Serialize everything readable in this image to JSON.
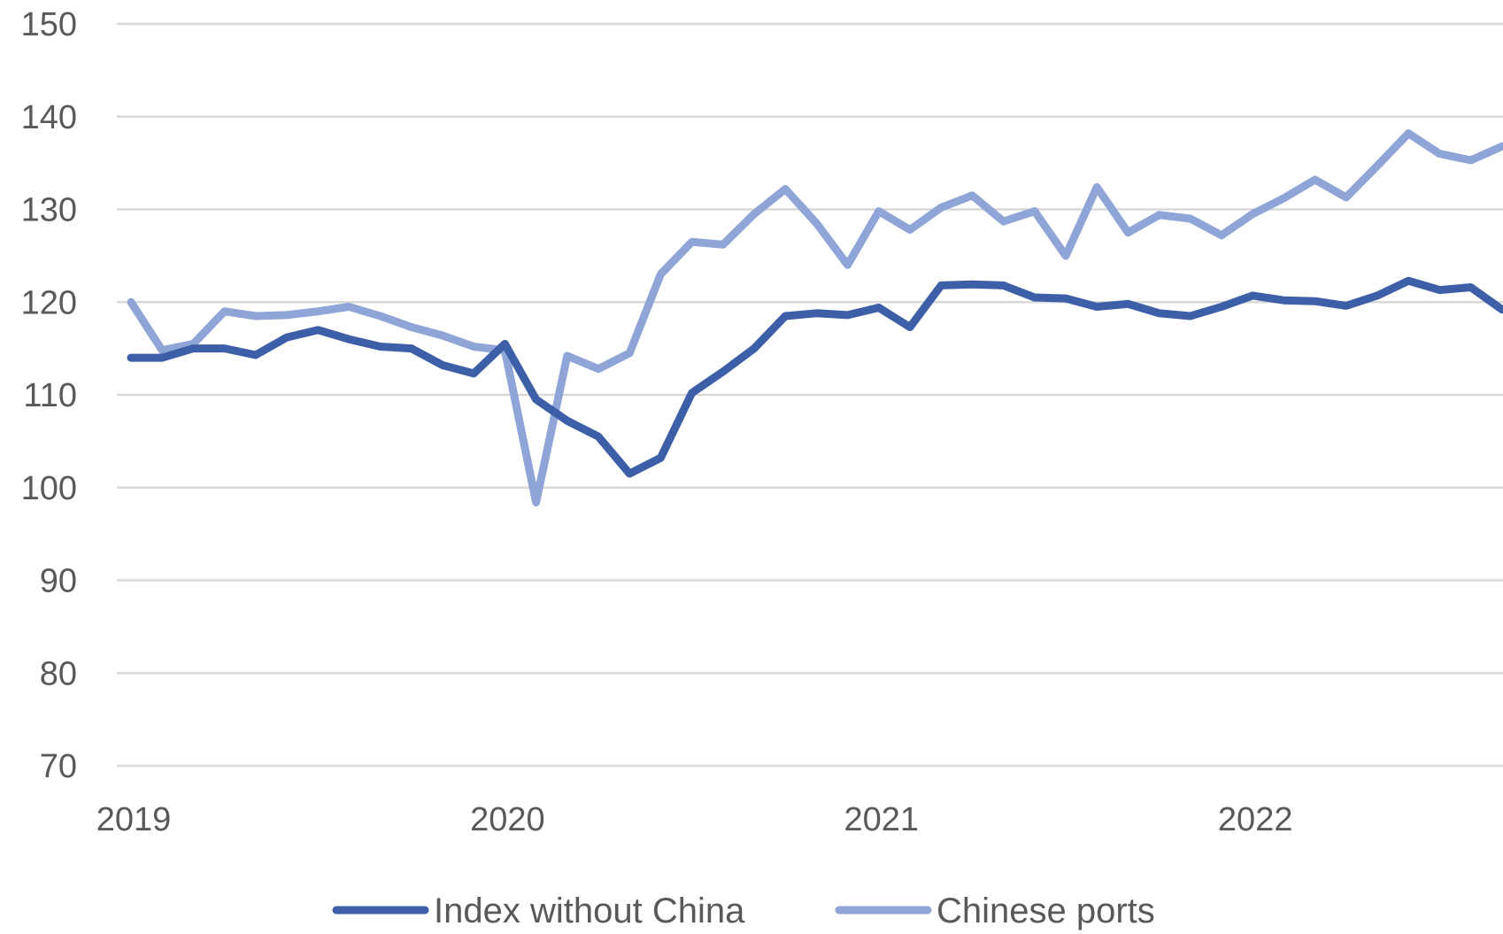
{
  "chart_data": {
    "type": "line",
    "title": "",
    "xlabel": "",
    "ylabel": "",
    "ylim": [
      70,
      150
    ],
    "yticks": [
      70,
      80,
      90,
      100,
      110,
      120,
      130,
      140,
      150
    ],
    "xticks": [
      {
        "label": "2019",
        "value": "2019-01"
      },
      {
        "label": "2020",
        "value": "2020-01"
      },
      {
        "label": "2021",
        "value": "2021-01"
      },
      {
        "label": "2022",
        "value": "2022-01"
      }
    ],
    "grid": true,
    "legend_position": "bottom",
    "x": [
      "2019-01",
      "2019-02",
      "2019-03",
      "2019-04",
      "2019-05",
      "2019-06",
      "2019-07",
      "2019-08",
      "2019-09",
      "2019-10",
      "2019-11",
      "2019-12",
      "2020-01",
      "2020-02",
      "2020-03",
      "2020-04",
      "2020-05",
      "2020-06",
      "2020-07",
      "2020-08",
      "2020-09",
      "2020-10",
      "2020-11",
      "2020-12",
      "2021-01",
      "2021-02",
      "2021-03",
      "2021-04",
      "2021-05",
      "2021-06",
      "2021-07",
      "2021-08",
      "2021-09",
      "2021-10",
      "2021-11",
      "2021-12",
      "2022-01",
      "2022-02",
      "2022-03",
      "2022-04",
      "2022-05",
      "2022-06",
      "2022-07",
      "2022-08",
      "2022-09"
    ],
    "series": [
      {
        "name": "Index without China",
        "color": "#3d5fa8",
        "values": [
          114,
          114,
          115,
          115,
          114.3,
          116.2,
          117,
          116,
          115.2,
          115,
          113.2,
          112.3,
          115.5,
          109.5,
          107.2,
          105.5,
          101.5,
          103.2,
          110.2,
          112.5,
          115,
          118.5,
          118.8,
          118.6,
          119.4,
          117.3,
          121.8,
          121.9,
          121.8,
          120.5,
          120.4,
          119.5,
          119.8,
          118.8,
          118.5,
          119.5,
          120.7,
          120.2,
          120.1,
          119.6,
          120.7,
          122.3,
          121.3,
          121.6,
          119.2
        ]
      },
      {
        "name": "Chinese ports",
        "color": "#8fa5d8",
        "values": [
          120,
          114.8,
          115.5,
          119,
          118.5,
          118.6,
          119,
          119.5,
          118.5,
          117.3,
          116.4,
          115.2,
          114.8,
          98.4,
          114.2,
          112.8,
          114.5,
          123,
          126.5,
          126.2,
          129.5,
          132.2,
          128.5,
          124,
          129.8,
          127.8,
          130.2,
          131.5,
          128.7,
          129.8,
          125,
          132.4,
          127.5,
          129.4,
          129,
          127.2,
          129.5,
          131.2,
          133.2,
          131.3,
          134.7,
          138.2,
          136,
          135.3,
          136.8
        ]
      }
    ]
  }
}
